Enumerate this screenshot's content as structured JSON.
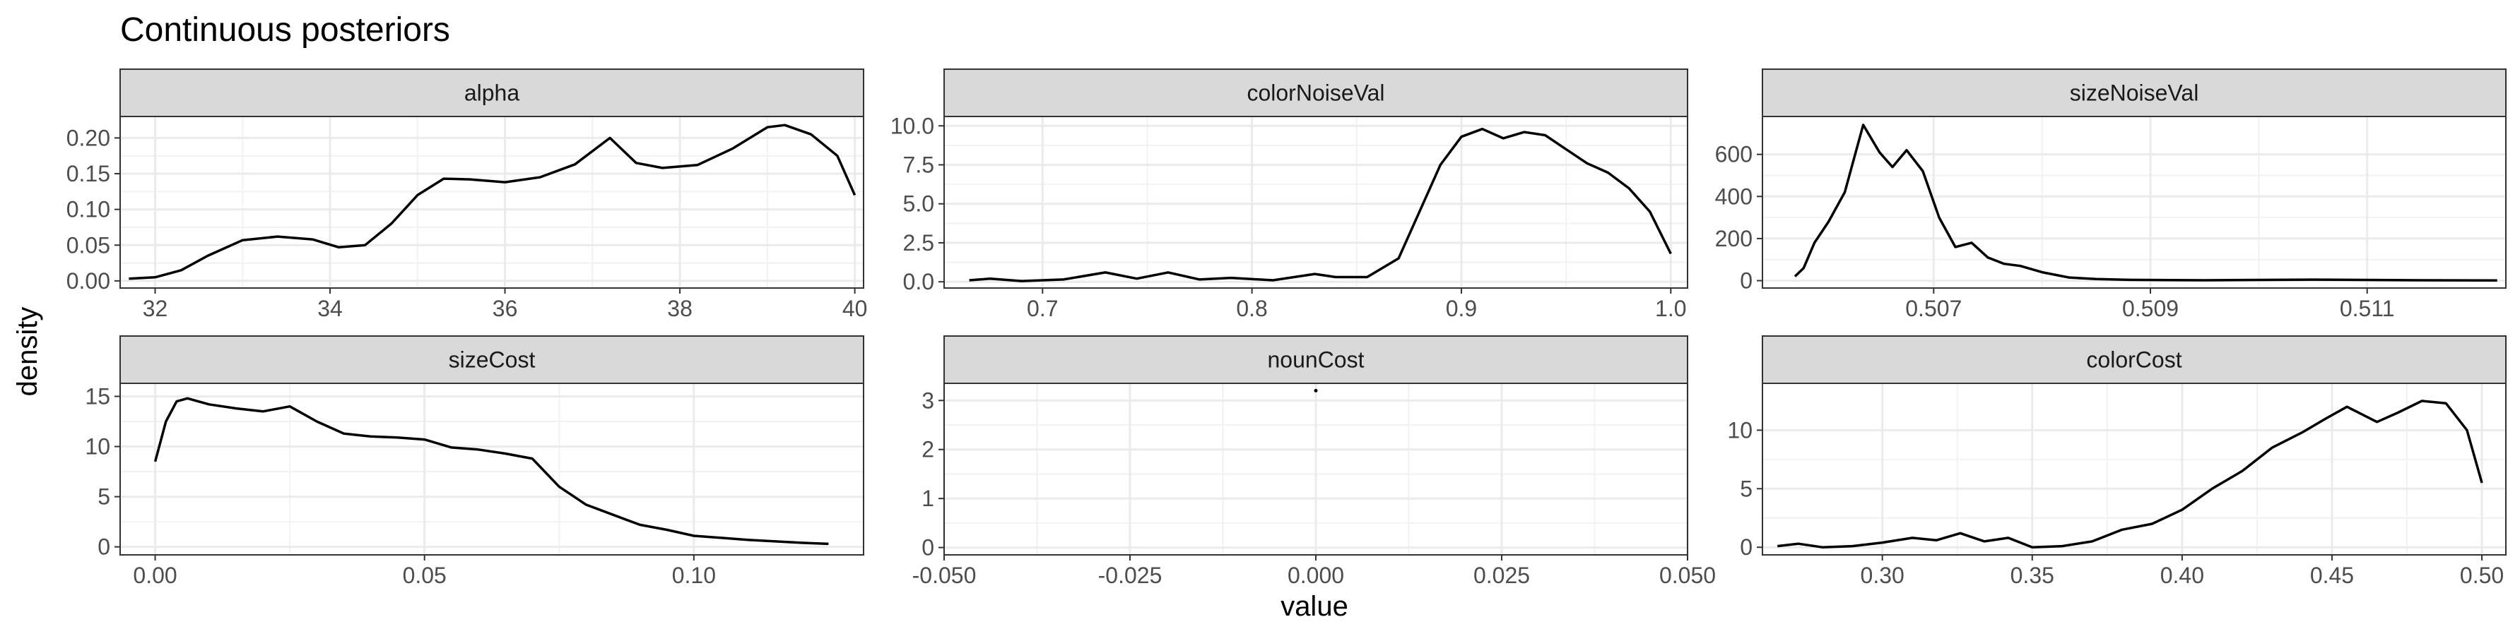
{
  "chart_data": {
    "type": "line",
    "title": "Continuous posteriors",
    "xlabel": "value",
    "ylabel": "density",
    "grid": true,
    "panels": [
      {
        "name": "alpha",
        "xlim": [
          31.6,
          40.1
        ],
        "ylim": [
          -0.01,
          0.23
        ],
        "xticks": [
          32,
          34,
          36,
          38,
          40
        ],
        "xtick_labels": [
          "32",
          "34",
          "36",
          "38",
          "40"
        ],
        "yticks": [
          0.0,
          0.05,
          0.1,
          0.15,
          0.2
        ],
        "ytick_labels": [
          "0.00",
          "0.05",
          "0.10",
          "0.15",
          "0.20"
        ],
        "x": [
          31.7,
          32.0,
          32.3,
          32.6,
          33.0,
          33.4,
          33.8,
          34.1,
          34.4,
          34.7,
          35.0,
          35.3,
          35.6,
          36.0,
          36.4,
          36.8,
          37.2,
          37.5,
          37.8,
          38.2,
          38.6,
          39.0,
          39.2,
          39.5,
          39.8,
          40.0
        ],
        "y": [
          0.003,
          0.005,
          0.015,
          0.035,
          0.057,
          0.062,
          0.058,
          0.047,
          0.05,
          0.08,
          0.12,
          0.143,
          0.142,
          0.138,
          0.145,
          0.163,
          0.2,
          0.165,
          0.158,
          0.162,
          0.185,
          0.215,
          0.218,
          0.205,
          0.175,
          0.12
        ]
      },
      {
        "name": "colorNoiseVal",
        "xlim": [
          0.653,
          1.008
        ],
        "ylim": [
          -0.4,
          10.6
        ],
        "xticks": [
          0.7,
          0.8,
          0.9,
          1.0
        ],
        "xtick_labels": [
          "0.7",
          "0.8",
          "0.9",
          "1.0"
        ],
        "yticks": [
          0.0,
          2.5,
          5.0,
          7.5,
          10.0
        ],
        "ytick_labels": [
          "0.0",
          "2.5",
          "5.0",
          "7.5",
          "10.0"
        ],
        "x": [
          0.665,
          0.675,
          0.69,
          0.71,
          0.73,
          0.745,
          0.76,
          0.775,
          0.79,
          0.81,
          0.83,
          0.84,
          0.855,
          0.87,
          0.88,
          0.89,
          0.9,
          0.91,
          0.92,
          0.93,
          0.94,
          0.95,
          0.96,
          0.97,
          0.98,
          0.99,
          1.0
        ],
        "y": [
          0.1,
          0.2,
          0.05,
          0.15,
          0.6,
          0.2,
          0.6,
          0.15,
          0.25,
          0.1,
          0.5,
          0.3,
          0.3,
          1.5,
          4.5,
          7.5,
          9.3,
          9.8,
          9.2,
          9.6,
          9.4,
          8.5,
          7.6,
          7.0,
          6.0,
          4.5,
          1.8
        ]
      },
      {
        "name": "sizeNoiseVal",
        "xlim": [
          0.50542,
          0.51228
        ],
        "ylim": [
          -35,
          780
        ],
        "xticks": [
          0.507,
          0.509,
          0.511
        ],
        "xtick_labels": [
          "0.507",
          "0.509",
          "0.511"
        ],
        "yticks": [
          0,
          200,
          400,
          600
        ],
        "ytick_labels": [
          "0",
          "200",
          "400",
          "600"
        ],
        "x": [
          0.50572,
          0.5058,
          0.5059,
          0.50603,
          0.50618,
          0.50635,
          0.5065,
          0.50662,
          0.50675,
          0.5069,
          0.50705,
          0.5072,
          0.50735,
          0.5075,
          0.50765,
          0.5078,
          0.508,
          0.50825,
          0.5085,
          0.5088,
          0.5095,
          0.5105,
          0.5115,
          0.5122
        ],
        "y": [
          20,
          60,
          180,
          280,
          420,
          740,
          610,
          540,
          620,
          520,
          300,
          160,
          180,
          110,
          80,
          70,
          40,
          15,
          8,
          4,
          2,
          5,
          2,
          1
        ]
      },
      {
        "name": "sizeCost",
        "xlim": [
          -0.0065,
          0.1315
        ],
        "ylim": [
          -0.8,
          16.3
        ],
        "xticks": [
          0.0,
          0.05,
          0.1
        ],
        "xtick_labels": [
          "0.00",
          "0.05",
          "0.10"
        ],
        "yticks": [
          0,
          5,
          10,
          15
        ],
        "ytick_labels": [
          "0",
          "5",
          "10",
          "15"
        ],
        "x": [
          0.0,
          0.002,
          0.004,
          0.006,
          0.01,
          0.015,
          0.02,
          0.025,
          0.03,
          0.035,
          0.04,
          0.045,
          0.05,
          0.055,
          0.06,
          0.065,
          0.07,
          0.075,
          0.08,
          0.085,
          0.09,
          0.095,
          0.1,
          0.11,
          0.12,
          0.125
        ],
        "y": [
          8.5,
          12.5,
          14.5,
          14.8,
          14.2,
          13.8,
          13.5,
          14.0,
          12.5,
          11.3,
          11.0,
          10.9,
          10.7,
          9.9,
          9.7,
          9.3,
          8.8,
          6.0,
          4.2,
          3.2,
          2.2,
          1.7,
          1.1,
          0.7,
          0.4,
          0.3
        ]
      },
      {
        "name": "nounCost",
        "xlim": [
          -0.05,
          0.05
        ],
        "ylim": [
          -0.15,
          3.35
        ],
        "xticks": [
          -0.05,
          -0.025,
          0.0,
          0.025,
          0.05
        ],
        "xtick_labels": [
          "-0.050",
          "-0.025",
          "0.000",
          "0.025",
          "0.050"
        ],
        "yticks": [
          0,
          1,
          2,
          3
        ],
        "ytick_labels": [
          "0",
          "1",
          "2",
          "3"
        ],
        "x": [
          0.0
        ],
        "y": [
          3.2
        ]
      },
      {
        "name": "colorCost",
        "xlim": [
          0.26,
          0.508
        ],
        "ylim": [
          -0.65,
          14.0
        ],
        "xticks": [
          0.3,
          0.35,
          0.4,
          0.45,
          0.5
        ],
        "xtick_labels": [
          "0.30",
          "0.35",
          "0.40",
          "0.45",
          "0.50"
        ],
        "yticks": [
          0,
          5,
          10
        ],
        "ytick_labels": [
          "0",
          "5",
          "10"
        ],
        "x": [
          0.265,
          0.272,
          0.28,
          0.29,
          0.3,
          0.31,
          0.318,
          0.326,
          0.334,
          0.342,
          0.35,
          0.36,
          0.37,
          0.38,
          0.39,
          0.4,
          0.41,
          0.42,
          0.43,
          0.44,
          0.448,
          0.455,
          0.465,
          0.472,
          0.48,
          0.488,
          0.495,
          0.5
        ],
        "y": [
          0.1,
          0.3,
          0.0,
          0.1,
          0.4,
          0.8,
          0.6,
          1.2,
          0.5,
          0.8,
          0.0,
          0.1,
          0.5,
          1.5,
          2.0,
          3.2,
          5.0,
          6.5,
          8.5,
          9.8,
          11.0,
          12.0,
          10.7,
          11.5,
          12.5,
          12.3,
          10.0,
          5.5
        ]
      }
    ]
  }
}
